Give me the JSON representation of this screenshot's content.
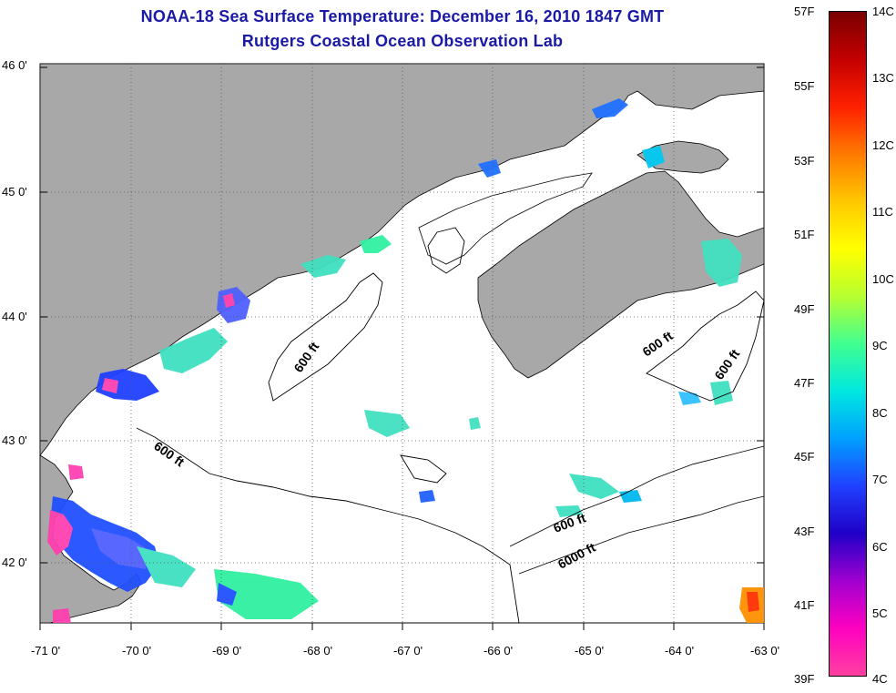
{
  "title": {
    "line1": "NOAA-18 Sea Surface Temperature:  December 16, 2010 1847 GMT",
    "line2": "Rutgers Coastal Ocean Observation Lab"
  },
  "map": {
    "lat_labels": [
      "46 0'",
      "45 0'",
      "44 0'",
      "43 0'",
      "42 0'"
    ],
    "lon_labels": [
      "-71 0'",
      "-70 0'",
      "-69 0'",
      "-68 0'",
      "-67 0'",
      "-66 0'",
      "-65 0'",
      "-64 0'",
      "-63 0'"
    ],
    "contour_labels": [
      {
        "text": "600 ft",
        "id": "c1"
      },
      {
        "text": "600 ft",
        "id": "c2"
      },
      {
        "text": "600 ft",
        "id": "c3"
      },
      {
        "text": "600 ft",
        "id": "c4"
      },
      {
        "text": "600 ft",
        "id": "c5"
      },
      {
        "text": "6000 ft",
        "id": "c6"
      }
    ],
    "colors": {
      "land": "#a8a8a8",
      "water_no_data": "#ffffff",
      "grid": "#555555"
    }
  },
  "colorbar": {
    "fahrenheit_labels": [
      "57F",
      "55F",
      "53F",
      "51F",
      "49F",
      "47F",
      "45F",
      "43F",
      "41F",
      "39F"
    ],
    "celsius_labels": [
      "14C",
      "13C",
      "12C",
      "11C",
      "10C",
      "9C",
      "8C",
      "7C",
      "6C",
      "5C",
      "4C"
    ],
    "gradient_stops": [
      "#7a0000",
      "#c40000",
      "#ff2000",
      "#ff7a00",
      "#ffc800",
      "#ffff00",
      "#b8ff30",
      "#40ff90",
      "#00e8e0",
      "#00a0ff",
      "#2040ff",
      "#2000c8",
      "#a000d0",
      "#ff00c0",
      "#ff40a0"
    ]
  }
}
